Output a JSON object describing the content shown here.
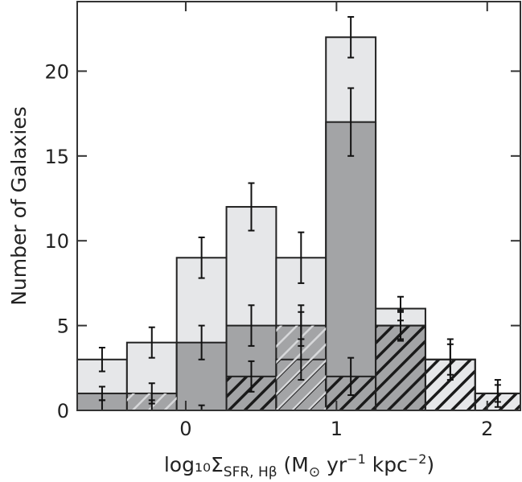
{
  "chart_data": {
    "type": "bar",
    "xlabel": "log₁₀Σ",
    "xlabel_sub": "SFR, Hβ",
    "xlabel_units_pre": " (M",
    "xlabel_units_sun": "⊙",
    "xlabel_units_mid": " yr",
    "xlabel_units_exp1": "−1",
    "xlabel_units_kpc": " kpc",
    "xlabel_units_exp2": "−2",
    "xlabel_units_post": ")",
    "ylabel": "Number of Galaxies",
    "xlim": [
      -0.72,
      2.22
    ],
    "ylim": [
      0,
      24.1
    ],
    "x_ticks": [
      0,
      1,
      2
    ],
    "x_tick_labels": [
      "0",
      "1",
      "2"
    ],
    "y_ticks": [
      0,
      5,
      10,
      15,
      20
    ],
    "y_tick_labels": [
      "0",
      "5",
      "10",
      "15",
      "20"
    ],
    "bin_edges": [
      -0.72,
      -0.39,
      -0.06,
      0.27,
      0.6,
      0.93,
      1.26,
      1.59,
      1.92,
      2.22
    ],
    "series": [
      {
        "style": "light",
        "values": [
          3,
          4,
          9,
          12,
          9,
          22,
          6,
          3,
          1
        ],
        "errors": [
          0.7,
          0.9,
          1.2,
          1.4,
          1.5,
          1.2,
          0.7,
          1.2,
          0.8
        ]
      },
      {
        "style": "dark",
        "values": [
          1,
          1,
          4,
          5,
          5,
          17,
          5,
          0,
          0
        ],
        "errors": [
          0.4,
          0.6,
          1.0,
          1.2,
          1.2,
          2.0,
          0.8,
          0,
          0
        ]
      },
      {
        "style": "hatched",
        "values": [
          0,
          0,
          0,
          2,
          3,
          2,
          5,
          3,
          1
        ],
        "errors": [
          0.6,
          0.6,
          0.3,
          0.9,
          1.2,
          1.1,
          0.9,
          0.9,
          0.5
        ]
      },
      {
        "style": "light-hatched",
        "values": [
          0,
          1,
          0,
          0,
          5,
          0,
          0,
          0,
          0
        ],
        "errors": [
          0,
          0,
          0,
          0,
          0.8,
          0,
          0,
          0,
          0
        ]
      }
    ]
  },
  "colors": {
    "light_fill": "#e6e7e9",
    "dark_fill": "#a3a4a6",
    "hatch": "#1a1a1a",
    "light_hatch": "#d7d8da",
    "axis": "#333333"
  }
}
